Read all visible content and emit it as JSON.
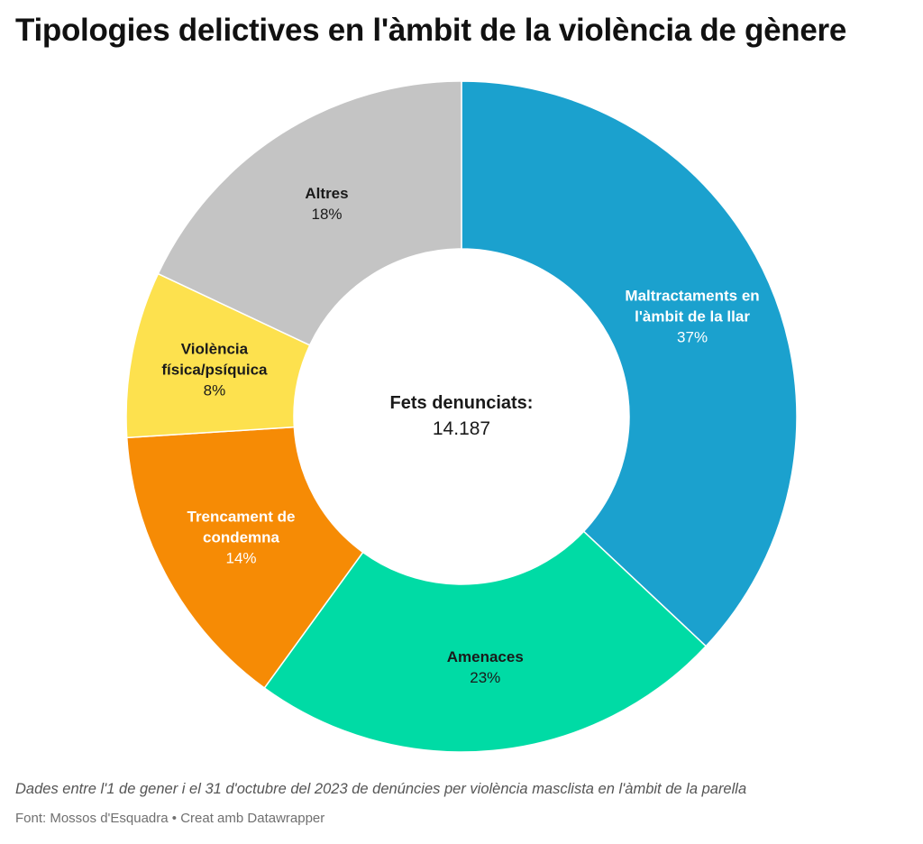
{
  "title": "Tipologies delictives en l'àmbit de la violència de gènere",
  "center": {
    "title": "Fets denunciats:",
    "value": "14.187"
  },
  "chart_data": {
    "type": "pie",
    "variant": "donut",
    "title": "Tipologies delictives en l'àmbit de la violència de gènere",
    "total": 14187,
    "slices": [
      {
        "label": "Maltractaments en l'àmbit de la llar",
        "lines": [
          "Maltractaments en",
          "l'àmbit de la llar"
        ],
        "value": 37,
        "pct_label": "37%",
        "color": "#1ba1ce",
        "label_color": "light"
      },
      {
        "label": "Amenaces",
        "lines": [
          "Amenaces"
        ],
        "value": 23,
        "pct_label": "23%",
        "color": "#00dba5",
        "label_color": "dark"
      },
      {
        "label": "Trencament de condemna",
        "lines": [
          "Trencament de",
          "condemna"
        ],
        "value": 14,
        "pct_label": "14%",
        "color": "#f68b05",
        "label_color": "light"
      },
      {
        "label": "Violència física/psíquica",
        "lines": [
          "Violència",
          "física/psíquica"
        ],
        "value": 8,
        "pct_label": "8%",
        "color": "#fde14e",
        "label_color": "dark"
      },
      {
        "label": "Altres",
        "lines": [
          "Altres"
        ],
        "value": 18,
        "pct_label": "18%",
        "color": "#c4c4c4",
        "label_color": "dark"
      }
    ]
  },
  "footer": {
    "notes": "Dades entre l'1 de gener i el 31 d'octubre del 2023 de denúncies per violència masclista en l'àmbit de la parella",
    "source": "Font: Mossos d'Esquadra • Creat amb Datawrapper"
  }
}
